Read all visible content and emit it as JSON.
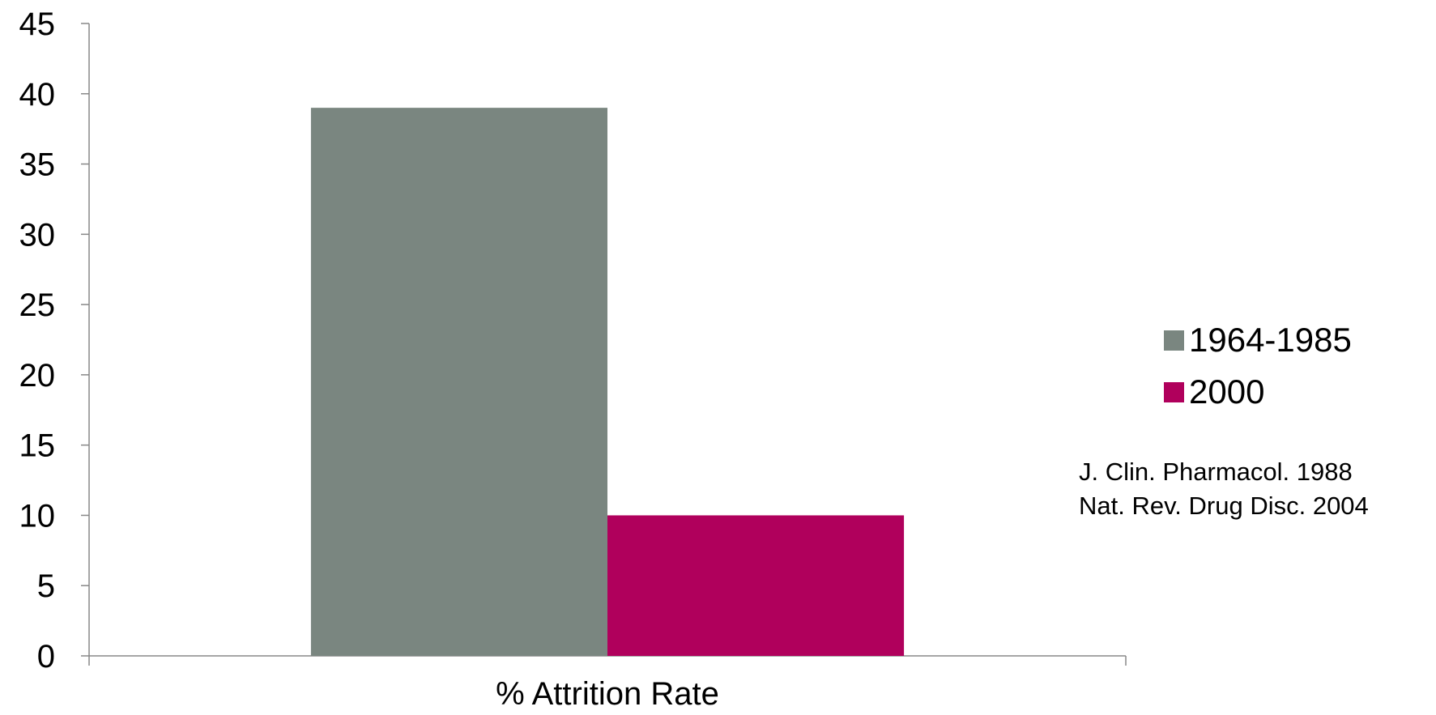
{
  "chart_data": {
    "type": "bar",
    "categories": [
      "% Attrition Rate"
    ],
    "series": [
      {
        "name": "1964-1985",
        "values": [
          39
        ],
        "color": "#7A8680"
      },
      {
        "name": "2000",
        "values": [
          10
        ],
        "color": "#B0005C"
      }
    ],
    "title": "",
    "xlabel": "",
    "ylabel": "",
    "ylim": [
      0,
      45
    ],
    "y_ticks": [
      "0",
      "5",
      "10",
      "15",
      "20",
      "25",
      "30",
      "35",
      "40",
      "45"
    ],
    "grid": false,
    "legend_position": "right"
  },
  "citations": {
    "line1": "J. Clin. Pharmacol. 1988",
    "line2": "Nat. Rev. Drug Disc. 2004"
  },
  "colors": {
    "axis": "#888888",
    "text": "#000000"
  }
}
